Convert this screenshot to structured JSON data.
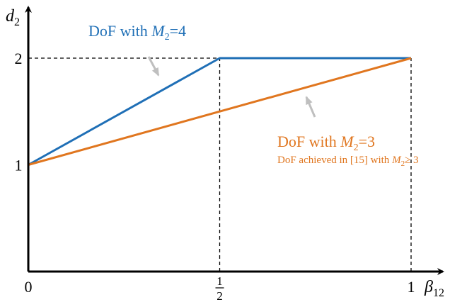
{
  "chart_data": {
    "type": "line",
    "xlabel": {
      "main": "β",
      "sub": "12"
    },
    "ylabel": {
      "main": "d",
      "sub": "2"
    },
    "xlim": [
      0,
      1.1
    ],
    "ylim": [
      0,
      2.35
    ],
    "x_ticks": [
      {
        "value": 0,
        "label": "0"
      },
      {
        "value": 0.5,
        "num": "1",
        "den": "2"
      },
      {
        "value": 1,
        "label": "1"
      }
    ],
    "y_ticks": [
      {
        "value": 1,
        "label": "1"
      },
      {
        "value": 2,
        "label": "2"
      }
    ],
    "grid": false,
    "reference_lines": [
      {
        "type": "horizontal",
        "y": 2,
        "x_from": 0,
        "x_to": 1
      },
      {
        "type": "vertical",
        "x": 0.5,
        "y_from": 0,
        "y_to": 2
      },
      {
        "type": "vertical",
        "x": 1,
        "y_from": 0,
        "y_to": 2
      }
    ],
    "series": [
      {
        "color": "#1f6fb6",
        "x": [
          0,
          0.5,
          1
        ],
        "y": [
          1,
          2,
          2
        ],
        "label": {
          "prefix": "DoF with ",
          "var": "M",
          "sub": "2",
          "suffix": "=4"
        }
      },
      {
        "color": "#e0761f",
        "x": [
          0,
          1
        ],
        "y": [
          1,
          2
        ],
        "label": {
          "prefix": "DoF with ",
          "var": "M",
          "sub": "2",
          "suffix": "=3"
        },
        "note": {
          "prefix": "DoF achieved in [15] with ",
          "var": "M",
          "sub": "2",
          "suffix": "≥ 3"
        }
      }
    ],
    "colors": {
      "axis": "#000000",
      "arrow": "#bfbfbf"
    }
  }
}
